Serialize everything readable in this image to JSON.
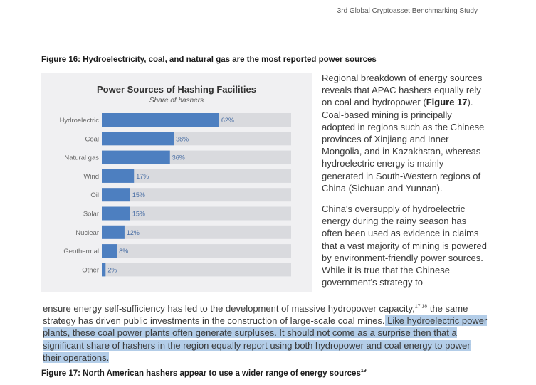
{
  "running_head": "3rd Global Cryptoasset Benchmarking Study",
  "figure16_caption": "Figure 16: Hydroelectricity, coal, and natural gas are the most reported power sources",
  "figure17_caption": "Figure 17: North American hashers appear to use a wider range of energy sources",
  "figure17_footnote": "19",
  "side_paragraph_1": {
    "before": "Regional breakdown of energy sources reveals that APAC hashers equally rely on coal and hydropower (",
    "bold": "Figure 17",
    "after": "). Coal-based mining is principally adopted in regions such as the Chinese provinces of Xinjiang and Inner Mongolia, and in Kazakhstan, whereas hydroelectric energy is mainly generated in South-Western regions of China (Sichuan and Yunnan)."
  },
  "side_paragraph_2": "China's oversupply of hydroelectric energy during the rainy season has often been used as evidence in claims that a vast majority of mining is powered by environment-friendly power sources. While it is true that the Chinese government's strategy to",
  "body_text": {
    "part1": "ensure energy self-sufficiency has led to the development of massive hydropower capacity,",
    "footnotes": "17 18",
    "part2": " the same strategy has driven public investments in the construction of large-scale coal mines.",
    "highlighted": " Like hydroelectric power plants, these coal power plants often generate surpluses. It should not come as a surprise then that a significant share of hashers in the region equally report using both hydropower and coal energy to power their operations."
  },
  "colors": {
    "bar": "#4d7fc0",
    "track": "#d9dade",
    "panel": "#f0f0f2",
    "highlight": "#b3cde8"
  },
  "chart_data": {
    "type": "bar",
    "orientation": "horizontal",
    "title": "Power Sources of Hashing Facilities",
    "subtitle": "Share of hashers",
    "categories": [
      "Hydroelectric",
      "Coal",
      "Natural gas",
      "Wind",
      "Oil",
      "Solar",
      "Nuclear",
      "Geothermal",
      "Other"
    ],
    "values": [
      62,
      38,
      36,
      17,
      15,
      15,
      12,
      8,
      2
    ],
    "data_labels": [
      "62%",
      "38%",
      "36%",
      "17%",
      "15%",
      "15%",
      "12%",
      "8%",
      "2%"
    ],
    "unit": "%",
    "xlim": [
      0,
      100
    ]
  }
}
